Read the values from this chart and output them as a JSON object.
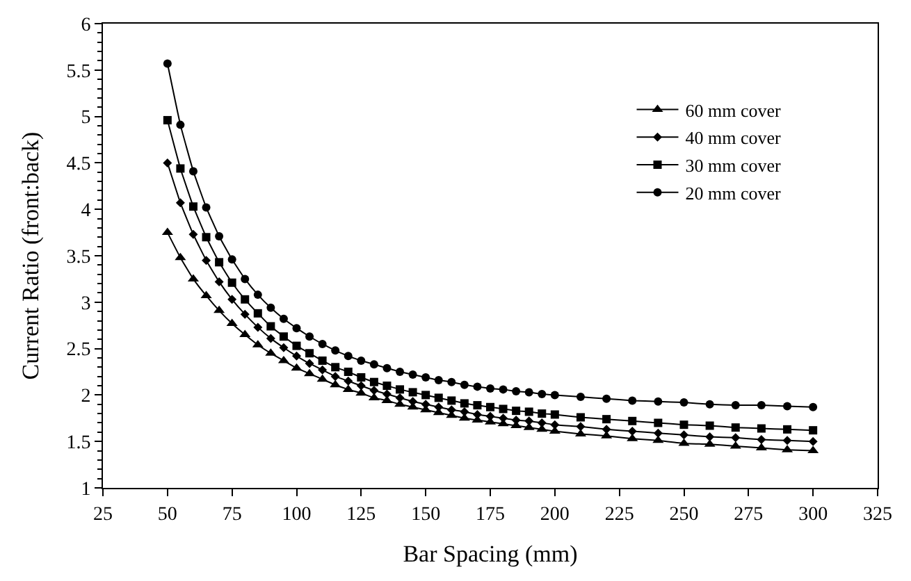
{
  "chart_data": {
    "type": "line",
    "xlabel": "Bar Spacing (mm)",
    "ylabel": "Current Ratio (front:back)",
    "x": [
      50,
      55,
      60,
      65,
      70,
      75,
      80,
      85,
      90,
      95,
      100,
      105,
      110,
      115,
      120,
      125,
      130,
      135,
      140,
      145,
      150,
      155,
      160,
      165,
      170,
      175,
      180,
      185,
      190,
      195,
      200,
      210,
      220,
      230,
      240,
      250,
      260,
      270,
      280,
      290,
      300
    ],
    "xlim": [
      25,
      325
    ],
    "xticks": [
      25,
      50,
      75,
      100,
      125,
      150,
      175,
      200,
      225,
      250,
      275,
      300,
      325
    ],
    "ylim": [
      1,
      6
    ],
    "yticks": [
      1,
      1.5,
      2,
      2.5,
      3,
      3.5,
      4,
      4.5,
      5,
      5.5,
      6
    ],
    "grid": false,
    "legend": "top right",
    "line_style": "solid",
    "series": [
      {
        "name": "60 mm cover",
        "color": "#000000",
        "marker": "triangle",
        "values": [
          3.75,
          3.48,
          3.25,
          3.07,
          2.91,
          2.77,
          2.65,
          2.54,
          2.45,
          2.37,
          2.29,
          2.23,
          2.17,
          2.11,
          2.06,
          2.02,
          1.97,
          1.94,
          1.9,
          1.87,
          1.84,
          1.81,
          1.78,
          1.75,
          1.73,
          1.71,
          1.69,
          1.67,
          1.65,
          1.63,
          1.61,
          1.58,
          1.56,
          1.53,
          1.51,
          1.48,
          1.47,
          1.45,
          1.43,
          1.41,
          1.4
        ]
      },
      {
        "name": "40 mm cover",
        "color": "#000000",
        "marker": "diamond",
        "values": [
          4.5,
          4.07,
          3.73,
          3.45,
          3.22,
          3.03,
          2.87,
          2.73,
          2.61,
          2.51,
          2.42,
          2.34,
          2.27,
          2.2,
          2.15,
          2.1,
          2.05,
          2.01,
          1.97,
          1.93,
          1.9,
          1.87,
          1.84,
          1.82,
          1.79,
          1.77,
          1.75,
          1.73,
          1.72,
          1.7,
          1.68,
          1.66,
          1.63,
          1.61,
          1.59,
          1.57,
          1.55,
          1.54,
          1.52,
          1.51,
          1.5
        ]
      },
      {
        "name": "30 mm cover",
        "color": "#000000",
        "marker": "square",
        "values": [
          4.96,
          4.44,
          4.03,
          3.7,
          3.43,
          3.21,
          3.03,
          2.88,
          2.74,
          2.63,
          2.53,
          2.45,
          2.37,
          2.3,
          2.25,
          2.19,
          2.14,
          2.1,
          2.06,
          2.03,
          2.0,
          1.97,
          1.94,
          1.91,
          1.89,
          1.87,
          1.85,
          1.83,
          1.82,
          1.8,
          1.79,
          1.76,
          1.74,
          1.72,
          1.7,
          1.68,
          1.67,
          1.65,
          1.64,
          1.63,
          1.62
        ]
      },
      {
        "name": "20 mm cover",
        "color": "#000000",
        "marker": "circle",
        "values": [
          5.57,
          4.91,
          4.41,
          4.02,
          3.71,
          3.46,
          3.25,
          3.08,
          2.94,
          2.82,
          2.72,
          2.63,
          2.55,
          2.48,
          2.42,
          2.37,
          2.33,
          2.29,
          2.25,
          2.22,
          2.19,
          2.16,
          2.14,
          2.11,
          2.09,
          2.07,
          2.06,
          2.04,
          2.03,
          2.01,
          2.0,
          1.98,
          1.96,
          1.94,
          1.93,
          1.92,
          1.9,
          1.89,
          1.89,
          1.88,
          1.87
        ]
      }
    ]
  }
}
